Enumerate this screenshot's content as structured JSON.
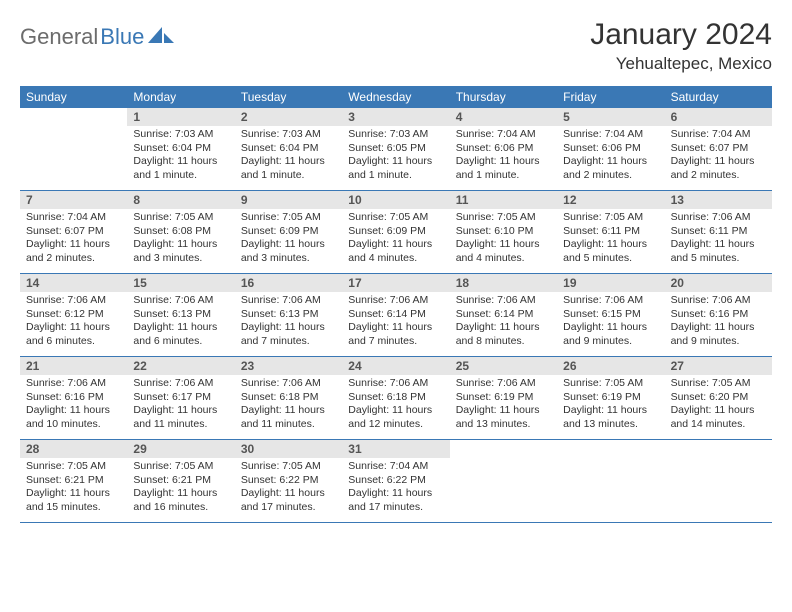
{
  "brand": {
    "part1": "General",
    "part2": "Blue"
  },
  "title": "January 2024",
  "location": "Yehualtepec, Mexico",
  "colors": {
    "header_bg": "#3a78b5",
    "daynum_bg": "#e6e6e6",
    "border": "#3a78b5",
    "text": "#333333",
    "logo_gray": "#6c6c6c"
  },
  "weekdays": [
    "Sunday",
    "Monday",
    "Tuesday",
    "Wednesday",
    "Thursday",
    "Friday",
    "Saturday"
  ],
  "weeks": [
    [
      {
        "n": "",
        "sr": "",
        "ss": "",
        "dl": ""
      },
      {
        "n": "1",
        "sr": "Sunrise: 7:03 AM",
        "ss": "Sunset: 6:04 PM",
        "dl": "Daylight: 11 hours and 1 minute."
      },
      {
        "n": "2",
        "sr": "Sunrise: 7:03 AM",
        "ss": "Sunset: 6:04 PM",
        "dl": "Daylight: 11 hours and 1 minute."
      },
      {
        "n": "3",
        "sr": "Sunrise: 7:03 AM",
        "ss": "Sunset: 6:05 PM",
        "dl": "Daylight: 11 hours and 1 minute."
      },
      {
        "n": "4",
        "sr": "Sunrise: 7:04 AM",
        "ss": "Sunset: 6:06 PM",
        "dl": "Daylight: 11 hours and 1 minute."
      },
      {
        "n": "5",
        "sr": "Sunrise: 7:04 AM",
        "ss": "Sunset: 6:06 PM",
        "dl": "Daylight: 11 hours and 2 minutes."
      },
      {
        "n": "6",
        "sr": "Sunrise: 7:04 AM",
        "ss": "Sunset: 6:07 PM",
        "dl": "Daylight: 11 hours and 2 minutes."
      }
    ],
    [
      {
        "n": "7",
        "sr": "Sunrise: 7:04 AM",
        "ss": "Sunset: 6:07 PM",
        "dl": "Daylight: 11 hours and 2 minutes."
      },
      {
        "n": "8",
        "sr": "Sunrise: 7:05 AM",
        "ss": "Sunset: 6:08 PM",
        "dl": "Daylight: 11 hours and 3 minutes."
      },
      {
        "n": "9",
        "sr": "Sunrise: 7:05 AM",
        "ss": "Sunset: 6:09 PM",
        "dl": "Daylight: 11 hours and 3 minutes."
      },
      {
        "n": "10",
        "sr": "Sunrise: 7:05 AM",
        "ss": "Sunset: 6:09 PM",
        "dl": "Daylight: 11 hours and 4 minutes."
      },
      {
        "n": "11",
        "sr": "Sunrise: 7:05 AM",
        "ss": "Sunset: 6:10 PM",
        "dl": "Daylight: 11 hours and 4 minutes."
      },
      {
        "n": "12",
        "sr": "Sunrise: 7:05 AM",
        "ss": "Sunset: 6:11 PM",
        "dl": "Daylight: 11 hours and 5 minutes."
      },
      {
        "n": "13",
        "sr": "Sunrise: 7:06 AM",
        "ss": "Sunset: 6:11 PM",
        "dl": "Daylight: 11 hours and 5 minutes."
      }
    ],
    [
      {
        "n": "14",
        "sr": "Sunrise: 7:06 AM",
        "ss": "Sunset: 6:12 PM",
        "dl": "Daylight: 11 hours and 6 minutes."
      },
      {
        "n": "15",
        "sr": "Sunrise: 7:06 AM",
        "ss": "Sunset: 6:13 PM",
        "dl": "Daylight: 11 hours and 6 minutes."
      },
      {
        "n": "16",
        "sr": "Sunrise: 7:06 AM",
        "ss": "Sunset: 6:13 PM",
        "dl": "Daylight: 11 hours and 7 minutes."
      },
      {
        "n": "17",
        "sr": "Sunrise: 7:06 AM",
        "ss": "Sunset: 6:14 PM",
        "dl": "Daylight: 11 hours and 7 minutes."
      },
      {
        "n": "18",
        "sr": "Sunrise: 7:06 AM",
        "ss": "Sunset: 6:14 PM",
        "dl": "Daylight: 11 hours and 8 minutes."
      },
      {
        "n": "19",
        "sr": "Sunrise: 7:06 AM",
        "ss": "Sunset: 6:15 PM",
        "dl": "Daylight: 11 hours and 9 minutes."
      },
      {
        "n": "20",
        "sr": "Sunrise: 7:06 AM",
        "ss": "Sunset: 6:16 PM",
        "dl": "Daylight: 11 hours and 9 minutes."
      }
    ],
    [
      {
        "n": "21",
        "sr": "Sunrise: 7:06 AM",
        "ss": "Sunset: 6:16 PM",
        "dl": "Daylight: 11 hours and 10 minutes."
      },
      {
        "n": "22",
        "sr": "Sunrise: 7:06 AM",
        "ss": "Sunset: 6:17 PM",
        "dl": "Daylight: 11 hours and 11 minutes."
      },
      {
        "n": "23",
        "sr": "Sunrise: 7:06 AM",
        "ss": "Sunset: 6:18 PM",
        "dl": "Daylight: 11 hours and 11 minutes."
      },
      {
        "n": "24",
        "sr": "Sunrise: 7:06 AM",
        "ss": "Sunset: 6:18 PM",
        "dl": "Daylight: 11 hours and 12 minutes."
      },
      {
        "n": "25",
        "sr": "Sunrise: 7:06 AM",
        "ss": "Sunset: 6:19 PM",
        "dl": "Daylight: 11 hours and 13 minutes."
      },
      {
        "n": "26",
        "sr": "Sunrise: 7:05 AM",
        "ss": "Sunset: 6:19 PM",
        "dl": "Daylight: 11 hours and 13 minutes."
      },
      {
        "n": "27",
        "sr": "Sunrise: 7:05 AM",
        "ss": "Sunset: 6:20 PM",
        "dl": "Daylight: 11 hours and 14 minutes."
      }
    ],
    [
      {
        "n": "28",
        "sr": "Sunrise: 7:05 AM",
        "ss": "Sunset: 6:21 PM",
        "dl": "Daylight: 11 hours and 15 minutes."
      },
      {
        "n": "29",
        "sr": "Sunrise: 7:05 AM",
        "ss": "Sunset: 6:21 PM",
        "dl": "Daylight: 11 hours and 16 minutes."
      },
      {
        "n": "30",
        "sr": "Sunrise: 7:05 AM",
        "ss": "Sunset: 6:22 PM",
        "dl": "Daylight: 11 hours and 17 minutes."
      },
      {
        "n": "31",
        "sr": "Sunrise: 7:04 AM",
        "ss": "Sunset: 6:22 PM",
        "dl": "Daylight: 11 hours and 17 minutes."
      },
      {
        "n": "",
        "sr": "",
        "ss": "",
        "dl": ""
      },
      {
        "n": "",
        "sr": "",
        "ss": "",
        "dl": ""
      },
      {
        "n": "",
        "sr": "",
        "ss": "",
        "dl": ""
      }
    ]
  ]
}
